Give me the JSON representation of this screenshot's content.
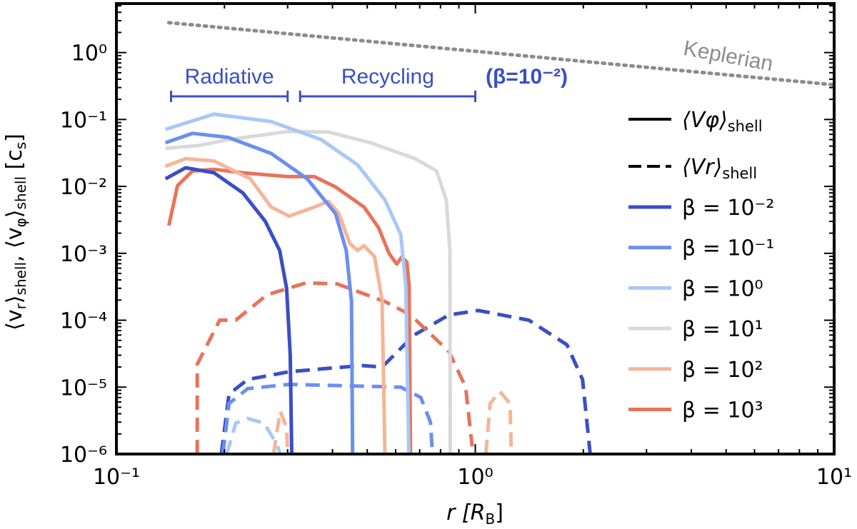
{
  "chart_data": {
    "type": "line",
    "xscale": "log",
    "yscale": "log",
    "xlim": [
      0.1,
      10
    ],
    "ylim": [
      1e-06,
      5.4
    ],
    "xlabel": {
      "main": "r [R",
      "sub": "B",
      "end": "]"
    },
    "ylabel": "⟨v_r⟩shell, ⟨v_φ⟩shell [c_s]",
    "ylabel_parts": [
      {
        "t": "⟨v"
      },
      {
        "t": "r",
        "sub": true
      },
      {
        "t": "⟩"
      },
      {
        "t": "shell",
        "sub": true
      },
      {
        "t": ", ⟨v"
      },
      {
        "t": "φ",
        "sub": true
      },
      {
        "t": "⟩"
      },
      {
        "t": "shell",
        "sub": true
      },
      {
        "t": " [c"
      },
      {
        "t": "s",
        "sub": true
      },
      {
        "t": "]"
      }
    ],
    "xticks": [
      {
        "value": 0.1,
        "label": "10⁻¹"
      },
      {
        "value": 1,
        "label": "10⁰"
      },
      {
        "value": 10,
        "label": "10¹"
      }
    ],
    "yticks": [
      {
        "value": 1,
        "label": "10⁰"
      },
      {
        "value": 0.1,
        "label": "10⁻¹"
      },
      {
        "value": 0.01,
        "label": "10⁻²"
      },
      {
        "value": 0.001,
        "label": "10⁻³"
      },
      {
        "value": 0.0001,
        "label": "10⁻⁴"
      },
      {
        "value": 1e-05,
        "label": "10⁻⁵"
      },
      {
        "value": 1e-06,
        "label": "10⁻⁶"
      }
    ],
    "grid": false,
    "legend_placement": "right",
    "legend_style": [
      {
        "label": "⟨Vφ⟩",
        "sub": "shell",
        "dash": "solid"
      },
      {
        "label": "⟨Vr⟩",
        "sub": "shell",
        "dash": "dashed"
      }
    ],
    "series": [
      {
        "name": "β = 10⁻²",
        "color": "#3a4fc4",
        "solid": [
          [
            0.137,
            0.013
          ],
          [
            0.156,
            0.019
          ],
          [
            0.187,
            0.016
          ],
          [
            0.225,
            0.008
          ],
          [
            0.26,
            0.003
          ],
          [
            0.285,
            0.0011
          ],
          [
            0.298,
            0.0003
          ],
          [
            0.305,
            3e-05
          ],
          [
            0.308,
            1e-06
          ]
        ],
        "dashed": [
          [
            [
              0.196,
              1e-06
            ],
            [
              0.206,
              7.9e-06
            ],
            [
              0.232,
              1.3e-05
            ],
            [
              0.303,
              1.7e-05
            ],
            [
              0.43,
              2e-05
            ],
            [
              0.485,
              2.1e-05
            ],
            [
              0.55,
              2e-05
            ],
            [
              0.676,
              6e-05
            ],
            [
              0.845,
              0.00012
            ],
            [
              1.02,
              0.00014
            ],
            [
              1.41,
              0.0001
            ],
            [
              1.8,
              4.3e-05
            ],
            [
              1.99,
              1.3e-05
            ],
            [
              2.09,
              1e-06
            ]
          ]
        ]
      },
      {
        "name": "β = 10⁻¹",
        "color": "#6a8ff0",
        "solid": [
          [
            0.137,
            0.045
          ],
          [
            0.163,
            0.062
          ],
          [
            0.205,
            0.054
          ],
          [
            0.27,
            0.031
          ],
          [
            0.34,
            0.013
          ],
          [
            0.408,
            0.0039
          ],
          [
            0.437,
            0.0011
          ],
          [
            0.452,
            0.00019
          ],
          [
            0.455,
            1e-06
          ]
        ],
        "dashed": [
          [
            [
              0.198,
              1e-06
            ],
            [
              0.206,
              5.7e-06
            ],
            [
              0.232,
              9.5e-06
            ],
            [
              0.303,
              1.1e-05
            ],
            [
              0.62,
              1e-05
            ],
            [
              0.705,
              7e-06
            ],
            [
              0.75,
              3e-06
            ],
            [
              0.76,
              1e-06
            ]
          ]
        ]
      },
      {
        "name": "β = 10⁰",
        "color": "#a8c8f8",
        "solid": [
          [
            0.137,
            0.071
          ],
          [
            0.187,
            0.12
          ],
          [
            0.27,
            0.093
          ],
          [
            0.372,
            0.05
          ],
          [
            0.47,
            0.021
          ],
          [
            0.56,
            0.0063
          ],
          [
            0.62,
            0.0019
          ],
          [
            0.64,
            0.00033
          ],
          [
            0.653,
            1e-06
          ]
        ],
        "dashed": [
          [
            [
              0.203,
              1e-06
            ],
            [
              0.215,
              2.9e-06
            ],
            [
              0.232,
              3.4e-06
            ],
            [
              0.258,
              2.9e-06
            ],
            [
              0.28,
              1.4e-06
            ],
            [
              0.286,
              1e-06
            ]
          ]
        ]
      },
      {
        "name": "β = 10¹",
        "color": "#d9d9d9",
        "solid": [
          [
            0.137,
            0.037
          ],
          [
            0.17,
            0.041
          ],
          [
            0.205,
            0.05
          ],
          [
            0.3,
            0.066
          ],
          [
            0.39,
            0.065
          ],
          [
            0.51,
            0.045
          ],
          [
            0.68,
            0.026
          ],
          [
            0.78,
            0.017
          ],
          [
            0.83,
            0.0063
          ],
          [
            0.85,
            0.0011
          ],
          [
            0.852,
            1e-06
          ]
        ],
        "dashed": []
      },
      {
        "name": "β = 10²",
        "color": "#f5b597",
        "solid": [
          [
            0.137,
            0.02
          ],
          [
            0.156,
            0.026
          ],
          [
            0.187,
            0.024
          ],
          [
            0.236,
            0.013
          ],
          [
            0.27,
            0.0049
          ],
          [
            0.303,
            0.0036
          ],
          [
            0.356,
            0.0049
          ],
          [
            0.39,
            0.006
          ],
          [
            0.417,
            0.0039
          ],
          [
            0.447,
            0.0014
          ],
          [
            0.47,
            0.0011
          ],
          [
            0.49,
            0.0013
          ],
          [
            0.524,
            0.00089
          ],
          [
            0.55,
            0.0002
          ],
          [
            0.56,
            1e-06
          ]
        ],
        "dashed": [
          [
            [
              0.274,
              1e-06
            ],
            [
              0.286,
              4.4e-06
            ],
            [
              0.298,
              2.5e-06
            ],
            [
              0.3,
              1e-06
            ]
          ],
          [
            [
              1.07,
              1e-06
            ],
            [
              1.1,
              5.7e-06
            ],
            [
              1.17,
              8.6e-06
            ],
            [
              1.25,
              5.7e-06
            ],
            [
              1.26,
              1e-06
            ]
          ]
        ]
      },
      {
        "name": "β = 10³",
        "color": "#e8735a",
        "solid": [
          [
            0.14,
            0.0026
          ],
          [
            0.148,
            0.0103
          ],
          [
            0.163,
            0.017
          ],
          [
            0.187,
            0.018
          ],
          [
            0.225,
            0.016
          ],
          [
            0.3,
            0.014
          ],
          [
            0.356,
            0.014
          ],
          [
            0.408,
            0.0098
          ],
          [
            0.49,
            0.0049
          ],
          [
            0.538,
            0.0024
          ],
          [
            0.575,
            0.001
          ],
          [
            0.604,
            0.00069
          ],
          [
            0.625,
            0.00089
          ],
          [
            0.645,
            0.00073
          ],
          [
            0.654,
            0.00033
          ],
          [
            0.66,
            1e-06
          ]
        ],
        "dashed": [
          [
            [
              0.168,
              1e-06
            ],
            [
              0.168,
              2.2e-05
            ],
            [
              0.194,
              0.0001
            ],
            [
              0.215,
              0.0001
            ],
            [
              0.263,
              0.00024
            ],
            [
              0.337,
              0.00036
            ],
            [
              0.412,
              0.00035
            ],
            [
              0.56,
              0.00019
            ],
            [
              0.66,
              0.00012
            ],
            [
              0.845,
              3.4e-05
            ],
            [
              0.94,
              1e-05
            ],
            [
              0.98,
              1.3e-06
            ]
          ]
        ]
      }
    ],
    "reference_line": {
      "name": "Keplerian",
      "color": "#8c8c8c",
      "style": "dotted",
      "points": [
        [
          0.14,
          2.8
        ],
        [
          10,
          0.33
        ]
      ]
    },
    "annotations": {
      "color": "#3a4fc4",
      "radiative": {
        "label": "Radiative",
        "range": [
          0.142,
          0.3
        ]
      },
      "recycling": {
        "label": "Recycling",
        "range": [
          0.325,
          1.0
        ]
      },
      "beta_note": "(β=10⁻²)"
    }
  }
}
